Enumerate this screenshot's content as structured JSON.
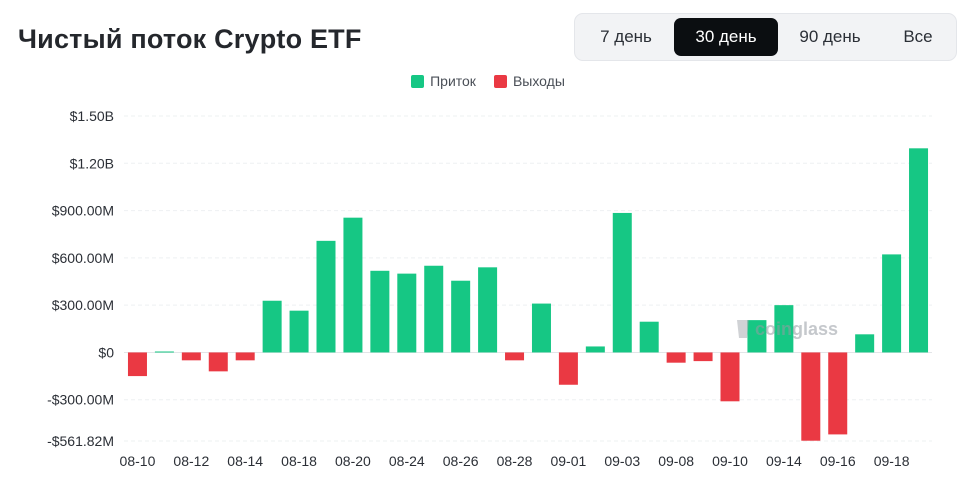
{
  "title": "Чистый поток Crypto ETF",
  "range_tabs": [
    {
      "label": "7 день",
      "active": false
    },
    {
      "label": "30 день",
      "active": true
    },
    {
      "label": "90 день",
      "active": false
    },
    {
      "label": "Все",
      "active": false
    }
  ],
  "legend": {
    "inflow": {
      "label": "Приток",
      "color": "#16c784"
    },
    "outflow": {
      "label": "Выходы",
      "color": "#ea3943"
    }
  },
  "watermark": "coinglass",
  "chart_data": {
    "type": "bar",
    "title": "Чистый поток Crypto ETF",
    "unit": "USD",
    "ylim": [
      -561820000,
      1500000000
    ],
    "y_ticks": [
      {
        "value": 1500000000,
        "label": "$1.50B"
      },
      {
        "value": 1200000000,
        "label": "$1.20B"
      },
      {
        "value": 900000000,
        "label": "$900.00M"
      },
      {
        "value": 600000000,
        "label": "$600.00M"
      },
      {
        "value": 300000000,
        "label": "$300.00M"
      },
      {
        "value": 0,
        "label": "$0"
      },
      {
        "value": -300000000,
        "label": "-$300.00M"
      },
      {
        "value": -561820000,
        "label": "-$561.82M"
      }
    ],
    "x_tick_labels": [
      "08-10",
      "08-12",
      "08-14",
      "08-18",
      "08-20",
      "08-24",
      "08-26",
      "08-28",
      "09-01",
      "09-03",
      "09-08",
      "09-10",
      "09-14",
      "09-16",
      "09-18"
    ],
    "grid": true,
    "legend_position": "top-center",
    "colors": {
      "positive": "#16c784",
      "negative": "#ea3943"
    },
    "values": [
      -150000000,
      6000000,
      -50000000,
      -120000000,
      -50000000,
      328000000,
      265000000,
      708000000,
      855000000,
      518000000,
      500000000,
      550000000,
      455000000,
      540000000,
      -50000000,
      310000000,
      -205000000,
      38000000,
      885000000,
      195000000,
      -65000000,
      -55000000,
      -310000000,
      205000000,
      300000000,
      -560000000,
      -520000000,
      115000000,
      622000000,
      1295000000
    ]
  }
}
